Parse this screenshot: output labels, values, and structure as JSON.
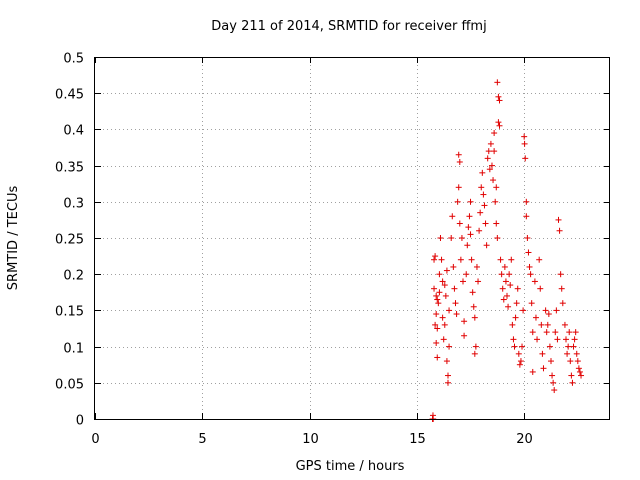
{
  "chart_data": {
    "type": "scatter",
    "title": "Day 211 of 2014, SRMTID for receiver ffmj",
    "xlabel": "GPS time / hours",
    "ylabel": "SRMTID / TECUs",
    "xlim": [
      0,
      24
    ],
    "ylim": [
      0,
      0.5
    ],
    "xticks": [
      0,
      5,
      10,
      15,
      20
    ],
    "xtick_labels": [
      "0",
      "5",
      "10",
      "15",
      "20"
    ],
    "yticks": [
      0,
      0.05,
      0.1,
      0.15,
      0.2,
      0.25,
      0.3,
      0.35,
      0.4,
      0.45,
      0.5
    ],
    "ytick_labels": [
      "0",
      "0.05",
      "0.1",
      "0.15",
      "0.2",
      "0.25",
      "0.3",
      "0.35",
      "0.4",
      "0.45",
      "0.5"
    ],
    "grid": true,
    "marker": "+",
    "color": "#e00000",
    "series": [
      {
        "name": "SRMTID",
        "points": [
          [
            15.73,
            0.0
          ],
          [
            15.75,
            0.005
          ],
          [
            15.76,
            0.0
          ],
          [
            15.8,
            0.22
          ],
          [
            15.85,
            0.225
          ],
          [
            15.8,
            0.18
          ],
          [
            15.9,
            0.17
          ],
          [
            15.95,
            0.165
          ],
          [
            15.9,
            0.145
          ],
          [
            15.85,
            0.13
          ],
          [
            15.95,
            0.125
          ],
          [
            16.0,
            0.16
          ],
          [
            16.05,
            0.175
          ],
          [
            15.9,
            0.105
          ],
          [
            16.05,
            0.2
          ],
          [
            15.95,
            0.085
          ],
          [
            16.1,
            0.25
          ],
          [
            16.15,
            0.22
          ],
          [
            16.2,
            0.19
          ],
          [
            16.2,
            0.14
          ],
          [
            16.25,
            0.11
          ],
          [
            16.3,
            0.13
          ],
          [
            16.3,
            0.185
          ],
          [
            16.35,
            0.17
          ],
          [
            16.4,
            0.205
          ],
          [
            16.4,
            0.08
          ],
          [
            16.45,
            0.06
          ],
          [
            16.45,
            0.05
          ],
          [
            16.5,
            0.15
          ],
          [
            16.5,
            0.1
          ],
          [
            16.6,
            0.25
          ],
          [
            16.65,
            0.28
          ],
          [
            16.7,
            0.21
          ],
          [
            16.75,
            0.18
          ],
          [
            16.8,
            0.16
          ],
          [
            16.85,
            0.145
          ],
          [
            16.9,
            0.3
          ],
          [
            16.95,
            0.32
          ],
          [
            17.0,
            0.27
          ],
          [
            16.95,
            0.365
          ],
          [
            17.0,
            0.355
          ],
          [
            17.05,
            0.22
          ],
          [
            17.1,
            0.25
          ],
          [
            17.15,
            0.19
          ],
          [
            17.2,
            0.135
          ],
          [
            17.2,
            0.115
          ],
          [
            17.3,
            0.2
          ],
          [
            17.35,
            0.24
          ],
          [
            17.4,
            0.265
          ],
          [
            17.45,
            0.28
          ],
          [
            17.5,
            0.255
          ],
          [
            17.5,
            0.3
          ],
          [
            17.55,
            0.22
          ],
          [
            17.6,
            0.175
          ],
          [
            17.65,
            0.155
          ],
          [
            17.7,
            0.14
          ],
          [
            17.7,
            0.09
          ],
          [
            17.75,
            0.1
          ],
          [
            17.8,
            0.21
          ],
          [
            17.85,
            0.19
          ],
          [
            17.9,
            0.26
          ],
          [
            17.95,
            0.285
          ],
          [
            18.0,
            0.32
          ],
          [
            18.05,
            0.34
          ],
          [
            18.1,
            0.31
          ],
          [
            18.15,
            0.295
          ],
          [
            18.2,
            0.27
          ],
          [
            18.25,
            0.24
          ],
          [
            18.3,
            0.36
          ],
          [
            18.35,
            0.37
          ],
          [
            18.4,
            0.345
          ],
          [
            18.45,
            0.38
          ],
          [
            18.5,
            0.35
          ],
          [
            18.55,
            0.33
          ],
          [
            18.6,
            0.37
          ],
          [
            18.6,
            0.395
          ],
          [
            18.65,
            0.3
          ],
          [
            18.7,
            0.32
          ],
          [
            18.75,
            0.465
          ],
          [
            18.8,
            0.445
          ],
          [
            18.85,
            0.44
          ],
          [
            18.8,
            0.41
          ],
          [
            18.85,
            0.405
          ],
          [
            18.7,
            0.27
          ],
          [
            18.75,
            0.25
          ],
          [
            18.9,
            0.22
          ],
          [
            18.95,
            0.2
          ],
          [
            19.0,
            0.18
          ],
          [
            19.05,
            0.165
          ],
          [
            19.1,
            0.21
          ],
          [
            19.15,
            0.19
          ],
          [
            19.2,
            0.17
          ],
          [
            19.25,
            0.155
          ],
          [
            19.3,
            0.2
          ],
          [
            19.35,
            0.185
          ],
          [
            19.4,
            0.22
          ],
          [
            19.45,
            0.13
          ],
          [
            19.5,
            0.11
          ],
          [
            19.55,
            0.1
          ],
          [
            19.6,
            0.14
          ],
          [
            19.65,
            0.16
          ],
          [
            19.7,
            0.18
          ],
          [
            19.75,
            0.09
          ],
          [
            19.8,
            0.075
          ],
          [
            19.85,
            0.08
          ],
          [
            19.9,
            0.1
          ],
          [
            19.95,
            0.15
          ],
          [
            20.0,
            0.39
          ],
          [
            20.02,
            0.38
          ],
          [
            20.05,
            0.36
          ],
          [
            20.1,
            0.3
          ],
          [
            20.1,
            0.28
          ],
          [
            20.15,
            0.25
          ],
          [
            20.2,
            0.23
          ],
          [
            20.25,
            0.21
          ],
          [
            20.3,
            0.2
          ],
          [
            20.35,
            0.16
          ],
          [
            20.4,
            0.12
          ],
          [
            20.4,
            0.065
          ],
          [
            20.5,
            0.19
          ],
          [
            20.55,
            0.14
          ],
          [
            20.6,
            0.11
          ],
          [
            20.7,
            0.22
          ],
          [
            20.75,
            0.18
          ],
          [
            20.8,
            0.13
          ],
          [
            20.85,
            0.09
          ],
          [
            20.9,
            0.07
          ],
          [
            21.0,
            0.15
          ],
          [
            21.05,
            0.12
          ],
          [
            21.1,
            0.13
          ],
          [
            21.15,
            0.145
          ],
          [
            21.2,
            0.1
          ],
          [
            21.25,
            0.08
          ],
          [
            21.3,
            0.06
          ],
          [
            21.35,
            0.05
          ],
          [
            21.4,
            0.04
          ],
          [
            21.45,
            0.12
          ],
          [
            21.5,
            0.15
          ],
          [
            21.55,
            0.11
          ],
          [
            21.6,
            0.275
          ],
          [
            21.65,
            0.26
          ],
          [
            21.7,
            0.2
          ],
          [
            21.75,
            0.18
          ],
          [
            21.8,
            0.16
          ],
          [
            21.9,
            0.13
          ],
          [
            21.95,
            0.11
          ],
          [
            22.0,
            0.09
          ],
          [
            22.05,
            0.1
          ],
          [
            22.1,
            0.12
          ],
          [
            22.15,
            0.08
          ],
          [
            22.2,
            0.06
          ],
          [
            22.25,
            0.05
          ],
          [
            22.3,
            0.1
          ],
          [
            22.35,
            0.11
          ],
          [
            22.4,
            0.12
          ],
          [
            22.45,
            0.09
          ],
          [
            22.5,
            0.08
          ],
          [
            22.55,
            0.07
          ],
          [
            22.6,
            0.065
          ],
          [
            22.65,
            0.06
          ]
        ]
      }
    ]
  }
}
